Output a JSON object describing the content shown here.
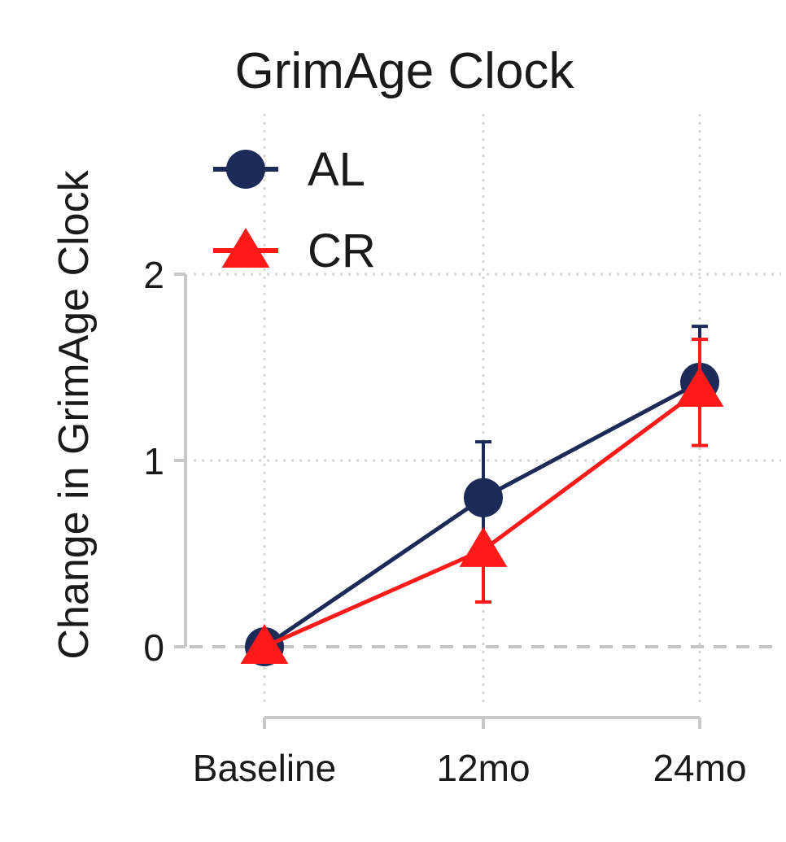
{
  "chart_data": {
    "type": "line",
    "title": "GrimAge Clock",
    "xlabel": "",
    "ylabel": "Change in GrimAge Clock",
    "categories": [
      "Baseline",
      "12mo",
      "24mo"
    ],
    "yticks": [
      "0",
      "1",
      "2"
    ],
    "ylim": [
      -0.35,
      2.2
    ],
    "grid": true,
    "reference_line": 0,
    "legend_position": "top-left",
    "series": [
      {
        "name": "AL",
        "marker": "circle",
        "color": "#1b2a57",
        "values": [
          0,
          0.8,
          1.42
        ],
        "err_low": [
          0,
          0.34,
          0.12
        ],
        "err_high": [
          0,
          0.3,
          0.3
        ]
      },
      {
        "name": "CR",
        "marker": "triangle",
        "color": "#ff1a1a",
        "values": [
          0,
          0.52,
          1.38
        ],
        "err_low": [
          0,
          0.28,
          0.3
        ],
        "err_high": [
          0,
          0.0,
          0.27
        ]
      }
    ]
  }
}
